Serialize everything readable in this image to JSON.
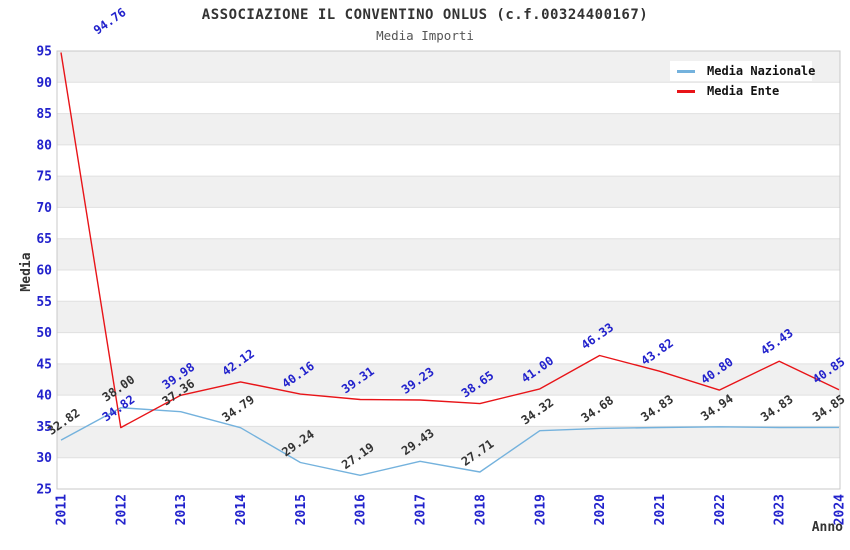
{
  "title": "ASSOCIAZIONE IL CONVENTINO ONLUS (c.f.00324400167)",
  "subtitle": "Media Importi",
  "axes": {
    "y_title": "Media",
    "x_title": "Anno",
    "y_ticks": [
      25,
      30,
      35,
      40,
      45,
      50,
      55,
      60,
      65,
      70,
      75,
      80,
      85,
      90,
      95
    ],
    "x_ticks": [
      "2011",
      "2012",
      "2013",
      "2014",
      "2015",
      "2016",
      "2017",
      "2018",
      "2019",
      "2020",
      "2021",
      "2022",
      "2023",
      "2024"
    ]
  },
  "legend": {
    "items": [
      {
        "label": "Media Nazionale",
        "color": "#74b2dd"
      },
      {
        "label": "Media Ente",
        "color": "#e81418"
      }
    ]
  },
  "chart_data": {
    "type": "line",
    "title": "ASSOCIAZIONE IL CONVENTINO ONLUS (c.f.00324400167)",
    "subtitle": "Media Importi",
    "xlabel": "Anno",
    "ylabel": "Media",
    "categories": [
      2011,
      2012,
      2013,
      2014,
      2015,
      2016,
      2017,
      2018,
      2019,
      2020,
      2021,
      2022,
      2023,
      2024
    ],
    "series": [
      {
        "name": "Media Nazionale",
        "color": "#74b2dd",
        "label_color": "#333333",
        "values": [
          32.82,
          38.0,
          37.36,
          34.79,
          29.24,
          27.19,
          29.43,
          27.71,
          34.32,
          34.68,
          34.83,
          34.94,
          34.83,
          34.85
        ]
      },
      {
        "name": "Media Ente",
        "color": "#e81418",
        "label_color": "#2222cc",
        "values": [
          94.76,
          34.82,
          39.98,
          42.12,
          40.16,
          39.31,
          39.23,
          38.65,
          41.0,
          46.33,
          43.82,
          40.8,
          45.43,
          40.85
        ]
      }
    ],
    "ylim": [
      25,
      95
    ],
    "ytick_step": 5,
    "grid": "horizontal",
    "band_fill": "#f0f0f0",
    "legend_position": "top-right",
    "data_labels": true
  },
  "colors": {
    "tick_label": "#2222cc",
    "title": "#333333",
    "subtitle": "#555555",
    "grid_line": "#e0e0e0",
    "plot_border": "#c8c8c8",
    "band_fill": "#f0f0f0",
    "background": "#ffffff"
  }
}
